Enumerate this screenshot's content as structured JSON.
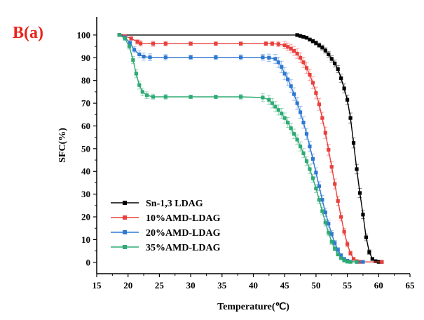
{
  "panel_label": "B(a)",
  "colors": {
    "Sn-1,3 LDAG": "#000000",
    "10%AMD-LDAG": "#e8403c",
    "20%AMD-LDAG": "#2f78d2",
    "35%AMD-LDAG": "#2eaa73",
    "panel_label": "#e8241c"
  },
  "chart_data": {
    "type": "line",
    "title": "",
    "xlabel": "Temperature(℃)",
    "ylabel": "SFC(%)",
    "xlim": [
      15,
      65
    ],
    "ylim": [
      -5,
      108
    ],
    "x_ticks": [
      15,
      20,
      25,
      30,
      35,
      40,
      45,
      50,
      55,
      60,
      65
    ],
    "y_ticks": [
      0,
      10,
      20,
      30,
      40,
      50,
      60,
      70,
      80,
      90,
      100
    ],
    "grid": false,
    "legend_position": "bottom-left",
    "series": [
      {
        "name": "Sn-1,3 LDAG",
        "marker": "square",
        "x": [
          18.6,
          47.0,
          47.5,
          48.0,
          48.5,
          49.0,
          49.5,
          50.0,
          50.5,
          51.0,
          51.5,
          52.0,
          52.5,
          53.0,
          53.5,
          54.0,
          54.5,
          55.0,
          55.5,
          56.0,
          56.5,
          57.0,
          57.5,
          58.0,
          58.5,
          59.0,
          59.5,
          60.0,
          60.5
        ],
        "y": [
          100,
          100,
          99.6,
          99.2,
          98.8,
          98.0,
          97.3,
          96.5,
          95.5,
          94.5,
          93.2,
          91.5,
          89.5,
          87.5,
          85.0,
          81.0,
          76.5,
          71.5,
          63.5,
          52.5,
          41.0,
          30.5,
          21.0,
          11.0,
          4.5,
          1.5,
          0.5,
          0.2,
          0.2
        ],
        "error": [
          0,
          0.5,
          0.5,
          0.6,
          0.6,
          0.7,
          0.8,
          0.9,
          1.0,
          1.1,
          1.2,
          1.3,
          1.4,
          1.5,
          1.6,
          1.8,
          2.0,
          2.1,
          2.2,
          2.2,
          2.1,
          2.0,
          1.8,
          1.5,
          1.0,
          0.6,
          0.3,
          0.2,
          0
        ]
      },
      {
        "name": "10%AMD-LDAG",
        "marker": "square",
        "x": [
          18.6,
          19.5,
          20.5,
          21.5,
          22.0,
          24.0,
          26.0,
          30.0,
          34.0,
          38.0,
          42.0,
          43.0,
          44.0,
          45.0,
          45.5,
          46.0,
          46.5,
          47.0,
          47.5,
          48.0,
          48.5,
          49.0,
          49.5,
          50.0,
          50.5,
          51.0,
          51.5,
          52.0,
          52.5,
          53.0,
          53.5,
          54.0,
          54.5,
          55.0,
          55.5,
          56.0,
          56.5,
          57.0,
          60.5
        ],
        "y": [
          100,
          99.5,
          98.5,
          97.0,
          96.3,
          96.2,
          96.2,
          96.2,
          96.2,
          96.2,
          96.2,
          96.2,
          96.0,
          95.5,
          94.8,
          94.0,
          93.0,
          91.8,
          90.0,
          88.0,
          85.5,
          82.5,
          79.0,
          74.5,
          69.5,
          63.5,
          57.0,
          49.5,
          42.0,
          34.5,
          27.0,
          20.0,
          13.5,
          8.0,
          4.0,
          1.5,
          0.5,
          0.2,
          0.2
        ],
        "error": [
          0,
          0.5,
          0.8,
          1.0,
          1.2,
          1.2,
          1.0,
          0.8,
          0.8,
          0.8,
          0.9,
          1.0,
          1.2,
          1.5,
          1.7,
          1.9,
          2.0,
          2.1,
          2.2,
          2.3,
          2.4,
          2.5,
          2.6,
          2.6,
          2.6,
          2.5,
          2.5,
          2.4,
          2.3,
          2.2,
          2.0,
          1.8,
          1.5,
          1.2,
          0.9,
          0.6,
          0.3,
          0.2,
          0
        ]
      },
      {
        "name": "20%AMD-LDAG",
        "marker": "square",
        "x": [
          18.6,
          19.5,
          20.3,
          21.0,
          21.8,
          22.5,
          23.5,
          26.0,
          30.0,
          34.0,
          38.0,
          41.5,
          42.5,
          43.5,
          44.0,
          44.5,
          45.0,
          45.5,
          46.0,
          46.5,
          47.0,
          47.5,
          48.0,
          48.5,
          49.0,
          49.5,
          50.0,
          50.5,
          51.0,
          51.5,
          52.0,
          52.5,
          53.0,
          53.5,
          54.0,
          54.5,
          55.0,
          55.5,
          56.5,
          57.5
        ],
        "y": [
          100,
          99.0,
          96.5,
          93.5,
          91.5,
          90.5,
          90.2,
          90.2,
          90.2,
          90.2,
          90.2,
          90.2,
          90.0,
          89.5,
          88.0,
          86.0,
          83.0,
          80.5,
          77.5,
          74.0,
          70.0,
          66.0,
          61.5,
          56.5,
          51.0,
          45.5,
          39.5,
          33.5,
          27.5,
          22.0,
          17.0,
          12.5,
          8.5,
          5.5,
          3.0,
          1.5,
          0.7,
          0.3,
          0.2,
          0.2
        ],
        "error": [
          0,
          0.6,
          1.0,
          1.3,
          1.5,
          1.6,
          1.5,
          1.2,
          1.0,
          1.0,
          1.1,
          1.3,
          1.6,
          2.0,
          2.3,
          2.5,
          2.7,
          2.8,
          2.8,
          2.8,
          2.7,
          2.6,
          2.5,
          2.4,
          2.3,
          2.2,
          2.1,
          2.0,
          1.9,
          1.8,
          1.6,
          1.4,
          1.2,
          1.0,
          0.8,
          0.6,
          0.4,
          0.3,
          0.2,
          0
        ]
      },
      {
        "name": "35%AMD-LDAG",
        "marker": "square",
        "x": [
          18.6,
          19.5,
          20.2,
          20.8,
          21.3,
          21.8,
          22.3,
          23.0,
          24.0,
          26.0,
          30.0,
          34.0,
          38.0,
          41.5,
          42.5,
          43.0,
          43.5,
          44.0,
          44.5,
          45.0,
          45.5,
          46.0,
          46.5,
          47.0,
          47.5,
          48.0,
          48.5,
          49.0,
          49.5,
          50.0,
          50.5,
          51.0,
          51.5,
          52.0,
          52.5,
          53.0,
          53.5,
          54.0,
          54.5,
          55.0,
          55.5,
          56.5
        ],
        "y": [
          100,
          98.5,
          95.0,
          89.0,
          83.0,
          78.0,
          75.0,
          73.5,
          72.8,
          72.8,
          72.8,
          72.8,
          72.8,
          72.5,
          71.5,
          70.0,
          68.5,
          67.0,
          65.5,
          63.5,
          61.5,
          59.0,
          56.5,
          54.0,
          51.0,
          48.0,
          44.5,
          41.0,
          37.0,
          32.5,
          27.5,
          22.5,
          17.5,
          13.0,
          9.0,
          6.0,
          3.5,
          1.8,
          0.8,
          0.3,
          0.2,
          0.2
        ],
        "error": [
          0,
          0.8,
          1.2,
          1.6,
          1.8,
          1.8,
          1.7,
          1.5,
          1.2,
          1.0,
          0.8,
          0.8,
          1.0,
          1.8,
          2.0,
          2.1,
          2.2,
          2.2,
          2.2,
          2.2,
          2.2,
          2.2,
          2.1,
          2.1,
          2.0,
          2.0,
          1.9,
          1.9,
          1.8,
          1.8,
          1.7,
          1.6,
          1.5,
          1.3,
          1.1,
          0.9,
          0.7,
          0.5,
          0.3,
          0.2,
          0.2,
          0
        ]
      }
    ]
  }
}
